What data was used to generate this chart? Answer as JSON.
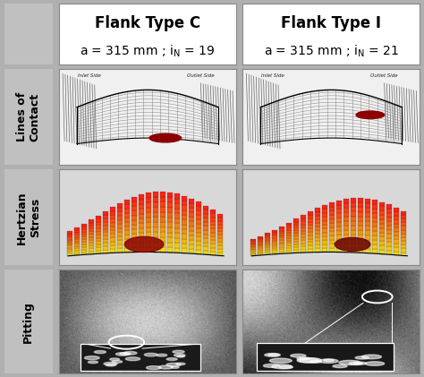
{
  "title_left": "Flank Type C",
  "title_right": "Flank Type I",
  "val_left": "= 19",
  "val_right": "= 21",
  "row_labels": [
    "Lines of\nContact",
    "Hertzian\nStress",
    "Pitting"
  ],
  "bg_color": "#b0b0b0",
  "header_bg": "#ffffff",
  "cell_bg": "#ffffff",
  "label_bg": "#c0c0c0",
  "title_fontsize": 12,
  "subtitle_fontsize": 10,
  "row_label_fontsize": 9
}
